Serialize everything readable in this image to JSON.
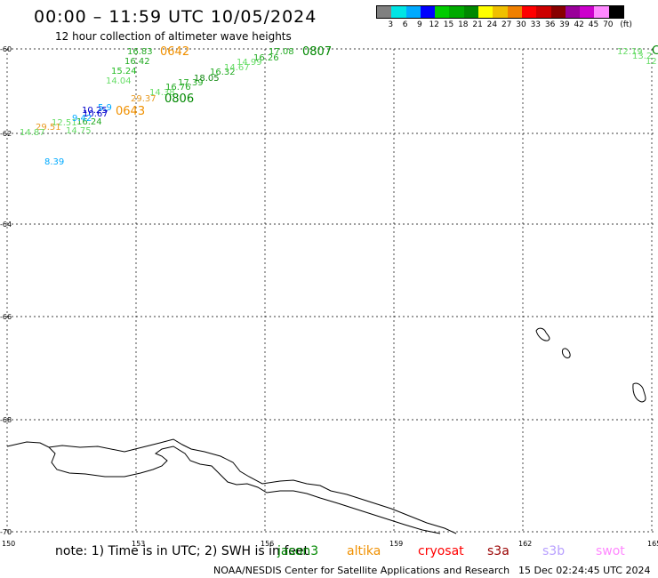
{
  "title": "00:00 – 11:59 UTC 10/05/2024",
  "subtitle": "12 hour collection of altimeter wave heights",
  "legend": {
    "unit": "(ft)",
    "colors": [
      "#808080",
      "#00e5e5",
      "#00aaff",
      "#0000ff",
      "#00cc00",
      "#00aa00",
      "#008800",
      "#ffff00",
      "#f0c000",
      "#f08000",
      "#ff0000",
      "#cc0000",
      "#880000",
      "#990099",
      "#cc00cc",
      "#ff88ff",
      "#000000"
    ],
    "labels": [
      "3",
      "6",
      "9",
      "12",
      "15",
      "18",
      "21",
      "24",
      "27",
      "30",
      "33",
      "36",
      "39",
      "42",
      "45",
      "70"
    ]
  },
  "axes": {
    "x_ticks": [
      "150",
      "153",
      "156",
      "159",
      "162",
      "165"
    ],
    "y_ticks": [
      "-60",
      "-62",
      "-64",
      "-66",
      "-68",
      "-70"
    ]
  },
  "wave_heights": [
    {
      "v": "16.83",
      "c": "#22aa22"
    },
    {
      "v": "16.42",
      "c": "#22aa22"
    },
    {
      "v": "15.24",
      "c": "#22bb22"
    },
    {
      "v": "14.04",
      "c": "#66dd66"
    },
    {
      "v": "29.37",
      "c": "#e89a20"
    },
    {
      "v": "14.38",
      "c": "#66dd66"
    },
    {
      "v": "16.76",
      "c": "#22aa22"
    },
    {
      "v": "17.39",
      "c": "#22aa22"
    },
    {
      "v": "18.05",
      "c": "#118811"
    },
    {
      "v": "16.32",
      "c": "#22aa22"
    },
    {
      "v": "14.67",
      "c": "#66dd66"
    },
    {
      "v": "14.99",
      "c": "#66dd66"
    },
    {
      "v": "16.26",
      "c": "#22aa22"
    },
    {
      "v": "17.08",
      "c": "#22aa22"
    },
    {
      "v": "10.25",
      "c": "#0000cc"
    },
    {
      "v": "5.9",
      "c": "#00aaff"
    },
    {
      "v": "10.67",
      "c": "#0000cc"
    },
    {
      "v": "16.24",
      "c": "#22aa22"
    },
    {
      "v": "12.51",
      "c": "#66dd66"
    },
    {
      "v": "9.42",
      "c": "#00aaff"
    },
    {
      "v": "29.51",
      "c": "#e89a20"
    },
    {
      "v": "14.87",
      "c": "#66dd66"
    },
    {
      "v": "14.75",
      "c": "#66dd66"
    },
    {
      "v": "8.39",
      "c": "#00aaff"
    },
    {
      "v": "12.19",
      "c": "#66dd66"
    },
    {
      "v": "13.2",
      "c": "#66dd66"
    },
    {
      "v": "12",
      "c": "#66dd66"
    }
  ],
  "passes": [
    {
      "label": "0642",
      "c": "#f09000"
    },
    {
      "label": "0807",
      "c": "#008800"
    },
    {
      "label": "0806",
      "c": "#008800"
    },
    {
      "label": "0643",
      "c": "#f09000"
    },
    {
      "label": "C",
      "c": "#008800"
    }
  ],
  "note": "note: 1) Time is in UTC; 2) SWH is in feet",
  "satellites": [
    {
      "name": "jason3",
      "c": "#008800"
    },
    {
      "name": "altika",
      "c": "#f09000"
    },
    {
      "name": "cryosat",
      "c": "#ff0000"
    },
    {
      "name": "s3a",
      "c": "#990000"
    },
    {
      "name": "s3b",
      "c": "#b8a0ff"
    },
    {
      "name": "swot",
      "c": "#ff88ff"
    }
  ],
  "credit": "NOAA/NESDIS Center for Satellite Applications and Research",
  "timestamp": "15 Dec 02:24:45 UTC 2024"
}
